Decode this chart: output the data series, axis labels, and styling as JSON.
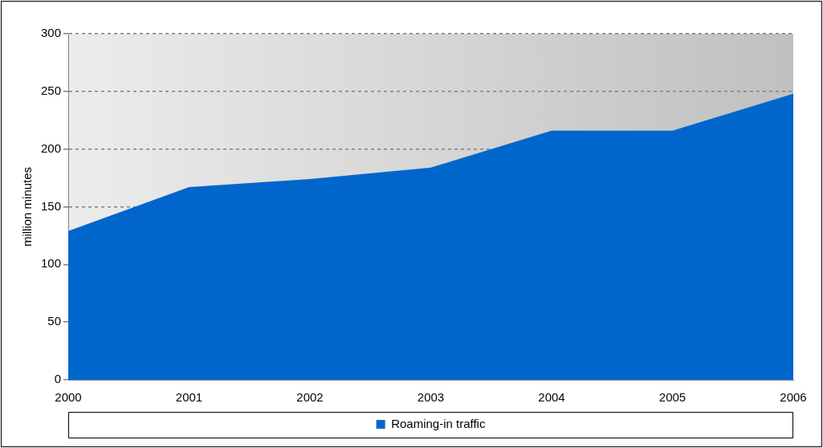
{
  "chart_data": {
    "type": "area",
    "ylabel": "million minutes",
    "categories": [
      "2000",
      "2001",
      "2002",
      "2003",
      "2004",
      "2005",
      "2006"
    ],
    "series": [
      {
        "name": "Roaming-in traffic",
        "color": "#0066cc",
        "values": [
          129,
          167,
          174,
          184,
          216,
          216,
          248
        ]
      }
    ],
    "ylim": [
      0,
      300
    ],
    "yticks": [
      0,
      50,
      100,
      150,
      200,
      250,
      300
    ],
    "grid": "y",
    "line_style": "dashed",
    "legend": "bottom",
    "marker": "none"
  }
}
